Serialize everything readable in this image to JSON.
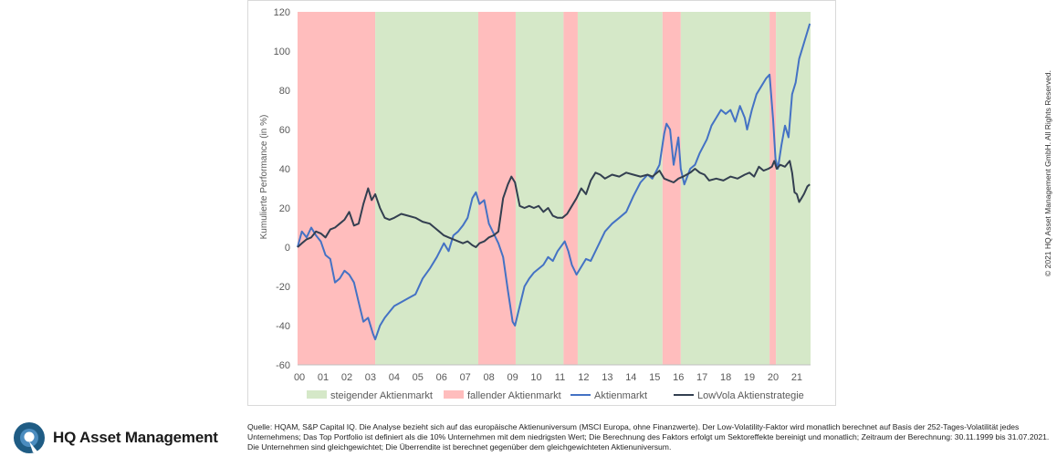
{
  "copyright": "© 2021 HQ Asset Management GmbH. All Rights Reserved.",
  "logo": {
    "name": "HQ Asset Management",
    "icon": "hq-logo-icon"
  },
  "source_note": "Quelle: HQAM, S&P Capital IQ. Die Analyse bezieht sich auf das europäische Aktienuniversum (MSCI Europa, ohne Finanzwerte). Der Low-Volatility-Faktor wird monatlich berechnet auf Basis der 252-Tages-Volatilität jedes Unternehmens; Das Top Portfolio ist definiert als die 10% Unternehmen mit dem niedrigsten Wert; Die Berechnung des Faktors erfolgt um Sektoreffekte bereinigt und monatlich; Zeitraum der Berechnung: 30.11.1999 bis 31.07.2021. Die Unternehmen sind gleichgewichtet; Die Überrendite ist berechnet gegenüber dem gleichgewichteten Aktienuniversum.",
  "chart_data": {
    "type": "line",
    "title": "",
    "xlabel": "",
    "ylabel": "Kumulierte Performance (in %)",
    "xlim": [
      1999.92,
      2021.58
    ],
    "ylim": [
      -60,
      120
    ],
    "x_ticks": [
      2000,
      2001,
      2002,
      2003,
      2004,
      2005,
      2006,
      2007,
      2008,
      2009,
      2010,
      2011,
      2012,
      2013,
      2014,
      2015,
      2016,
      2017,
      2018,
      2019,
      2020,
      2021
    ],
    "x_tick_labels": [
      "00",
      "01",
      "02",
      "03",
      "04",
      "05",
      "06",
      "07",
      "08",
      "09",
      "10",
      "11",
      "12",
      "13",
      "14",
      "15",
      "16",
      "17",
      "18",
      "19",
      "20",
      "21"
    ],
    "y_ticks": [
      -60,
      -40,
      -20,
      0,
      20,
      40,
      60,
      80,
      100,
      120
    ],
    "y_tick_labels": [
      "-60",
      "-40",
      "-20",
      "0",
      "20",
      "40",
      "60",
      "80",
      "100",
      "120"
    ],
    "grid": false,
    "legend_position": "bottom",
    "regimes": [
      {
        "type": "fallend",
        "start": 1999.92,
        "end": 2003.2
      },
      {
        "type": "steigend",
        "start": 2003.2,
        "end": 2007.55
      },
      {
        "type": "fallend",
        "start": 2007.55,
        "end": 2009.13
      },
      {
        "type": "steigend",
        "start": 2009.13,
        "end": 2011.15
      },
      {
        "type": "fallend",
        "start": 2011.15,
        "end": 2011.75
      },
      {
        "type": "steigend",
        "start": 2011.75,
        "end": 2015.33
      },
      {
        "type": "fallend",
        "start": 2015.33,
        "end": 2016.1
      },
      {
        "type": "steigend",
        "start": 2016.1,
        "end": 2019.85
      },
      {
        "type": "fallend",
        "start": 2019.85,
        "end": 2020.12
      },
      {
        "type": "steigend",
        "start": 2020.12,
        "end": 2021.58
      }
    ],
    "regime_colors": {
      "steigend": "#d5e8c8",
      "fallend": "#ffbdbd"
    },
    "legend": [
      {
        "label": "steigender Aktienmarkt",
        "kind": "area",
        "color": "#d5e8c8"
      },
      {
        "label": "fallender Aktienmarkt",
        "kind": "area",
        "color": "#ffbdbd"
      },
      {
        "label": "Aktienmarkt",
        "kind": "line",
        "color": "#4472c4"
      },
      {
        "label": "LowVola Aktienstrategie",
        "kind": "line",
        "color": "#333f50"
      }
    ],
    "series": [
      {
        "name": "Aktienmarkt",
        "color": "#4472c4",
        "points": [
          [
            1999.92,
            0
          ],
          [
            2000.1,
            8
          ],
          [
            2000.3,
            5
          ],
          [
            2000.5,
            10
          ],
          [
            2000.7,
            6
          ],
          [
            2000.9,
            3
          ],
          [
            2001.1,
            -4
          ],
          [
            2001.3,
            -6
          ],
          [
            2001.5,
            -18
          ],
          [
            2001.7,
            -16
          ],
          [
            2001.9,
            -12
          ],
          [
            2002.1,
            -14
          ],
          [
            2002.3,
            -18
          ],
          [
            2002.5,
            -28
          ],
          [
            2002.7,
            -38
          ],
          [
            2002.9,
            -36
          ],
          [
            2003.1,
            -44
          ],
          [
            2003.2,
            -47
          ],
          [
            2003.4,
            -40
          ],
          [
            2003.6,
            -36
          ],
          [
            2003.8,
            -33
          ],
          [
            2004.0,
            -30
          ],
          [
            2004.3,
            -28
          ],
          [
            2004.6,
            -26
          ],
          [
            2004.9,
            -24
          ],
          [
            2005.2,
            -16
          ],
          [
            2005.5,
            -11
          ],
          [
            2005.8,
            -5
          ],
          [
            2006.1,
            2
          ],
          [
            2006.3,
            -2
          ],
          [
            2006.5,
            6
          ],
          [
            2006.7,
            8
          ],
          [
            2006.9,
            11
          ],
          [
            2007.1,
            15
          ],
          [
            2007.3,
            25
          ],
          [
            2007.45,
            28
          ],
          [
            2007.6,
            22
          ],
          [
            2007.8,
            24
          ],
          [
            2008.0,
            12
          ],
          [
            2008.2,
            7
          ],
          [
            2008.4,
            2
          ],
          [
            2008.6,
            -5
          ],
          [
            2008.8,
            -22
          ],
          [
            2009.0,
            -38
          ],
          [
            2009.1,
            -40
          ],
          [
            2009.3,
            -30
          ],
          [
            2009.5,
            -20
          ],
          [
            2009.7,
            -16
          ],
          [
            2009.9,
            -13
          ],
          [
            2010.1,
            -11
          ],
          [
            2010.3,
            -9
          ],
          [
            2010.5,
            -5
          ],
          [
            2010.7,
            -7
          ],
          [
            2010.9,
            -2
          ],
          [
            2011.2,
            3
          ],
          [
            2011.35,
            -2
          ],
          [
            2011.5,
            -9
          ],
          [
            2011.7,
            -14
          ],
          [
            2011.9,
            -10
          ],
          [
            2012.1,
            -6
          ],
          [
            2012.3,
            -7
          ],
          [
            2012.5,
            -2
          ],
          [
            2012.7,
            3
          ],
          [
            2012.9,
            8
          ],
          [
            2013.2,
            12
          ],
          [
            2013.5,
            15
          ],
          [
            2013.8,
            18
          ],
          [
            2014.1,
            26
          ],
          [
            2014.4,
            33
          ],
          [
            2014.7,
            37
          ],
          [
            2014.9,
            35
          ],
          [
            2015.2,
            42
          ],
          [
            2015.4,
            58
          ],
          [
            2015.5,
            63
          ],
          [
            2015.65,
            60
          ],
          [
            2015.8,
            42
          ],
          [
            2016.0,
            56
          ],
          [
            2016.1,
            40
          ],
          [
            2016.25,
            32
          ],
          [
            2016.5,
            40
          ],
          [
            2016.7,
            42
          ],
          [
            2016.9,
            48
          ],
          [
            2017.2,
            55
          ],
          [
            2017.4,
            62
          ],
          [
            2017.6,
            66
          ],
          [
            2017.8,
            70
          ],
          [
            2018.0,
            68
          ],
          [
            2018.2,
            70
          ],
          [
            2018.4,
            64
          ],
          [
            2018.6,
            72
          ],
          [
            2018.8,
            66
          ],
          [
            2018.9,
            60
          ],
          [
            2019.1,
            70
          ],
          [
            2019.3,
            78
          ],
          [
            2019.5,
            82
          ],
          [
            2019.7,
            86
          ],
          [
            2019.85,
            88
          ],
          [
            2020.0,
            65
          ],
          [
            2020.1,
            45
          ],
          [
            2020.2,
            40
          ],
          [
            2020.35,
            52
          ],
          [
            2020.5,
            62
          ],
          [
            2020.65,
            56
          ],
          [
            2020.8,
            78
          ],
          [
            2020.95,
            84
          ],
          [
            2021.1,
            96
          ],
          [
            2021.3,
            104
          ],
          [
            2021.45,
            110
          ],
          [
            2021.55,
            114
          ]
        ]
      },
      {
        "name": "LowVola Aktienstrategie",
        "color": "#333f50",
        "points": [
          [
            1999.92,
            0
          ],
          [
            2000.1,
            2
          ],
          [
            2000.3,
            4
          ],
          [
            2000.5,
            5
          ],
          [
            2000.7,
            8
          ],
          [
            2000.9,
            7
          ],
          [
            2001.1,
            5
          ],
          [
            2001.3,
            9
          ],
          [
            2001.5,
            10
          ],
          [
            2001.7,
            12
          ],
          [
            2001.9,
            14
          ],
          [
            2002.1,
            18
          ],
          [
            2002.3,
            11
          ],
          [
            2002.5,
            12
          ],
          [
            2002.7,
            22
          ],
          [
            2002.9,
            30
          ],
          [
            2003.05,
            24
          ],
          [
            2003.2,
            27
          ],
          [
            2003.4,
            20
          ],
          [
            2003.6,
            15
          ],
          [
            2003.8,
            14
          ],
          [
            2004.0,
            15
          ],
          [
            2004.3,
            17
          ],
          [
            2004.6,
            16
          ],
          [
            2004.9,
            15
          ],
          [
            2005.2,
            13
          ],
          [
            2005.5,
            12
          ],
          [
            2005.7,
            10
          ],
          [
            2005.9,
            8
          ],
          [
            2006.1,
            6
          ],
          [
            2006.3,
            5
          ],
          [
            2006.5,
            4
          ],
          [
            2006.7,
            3
          ],
          [
            2006.9,
            2
          ],
          [
            2007.1,
            3
          ],
          [
            2007.3,
            1
          ],
          [
            2007.45,
            0
          ],
          [
            2007.6,
            2
          ],
          [
            2007.8,
            3
          ],
          [
            2008.0,
            5
          ],
          [
            2008.2,
            6
          ],
          [
            2008.4,
            8
          ],
          [
            2008.6,
            25
          ],
          [
            2008.8,
            32
          ],
          [
            2008.95,
            36
          ],
          [
            2009.1,
            33
          ],
          [
            2009.3,
            21
          ],
          [
            2009.5,
            20
          ],
          [
            2009.7,
            21
          ],
          [
            2009.9,
            20
          ],
          [
            2010.1,
            21
          ],
          [
            2010.3,
            18
          ],
          [
            2010.5,
            20
          ],
          [
            2010.7,
            16
          ],
          [
            2010.9,
            15
          ],
          [
            2011.1,
            15
          ],
          [
            2011.3,
            17
          ],
          [
            2011.5,
            21
          ],
          [
            2011.7,
            25
          ],
          [
            2011.9,
            30
          ],
          [
            2012.1,
            27
          ],
          [
            2012.3,
            34
          ],
          [
            2012.5,
            38
          ],
          [
            2012.7,
            37
          ],
          [
            2012.9,
            35
          ],
          [
            2013.2,
            37
          ],
          [
            2013.5,
            36
          ],
          [
            2013.8,
            38
          ],
          [
            2014.1,
            37
          ],
          [
            2014.4,
            36
          ],
          [
            2014.7,
            37
          ],
          [
            2014.9,
            36
          ],
          [
            2015.2,
            39
          ],
          [
            2015.4,
            35
          ],
          [
            2015.6,
            34
          ],
          [
            2015.8,
            33
          ],
          [
            2016.0,
            35
          ],
          [
            2016.2,
            36
          ],
          [
            2016.5,
            38
          ],
          [
            2016.7,
            40
          ],
          [
            2016.9,
            38
          ],
          [
            2017.1,
            37
          ],
          [
            2017.3,
            34
          ],
          [
            2017.6,
            35
          ],
          [
            2017.9,
            34
          ],
          [
            2018.2,
            36
          ],
          [
            2018.5,
            35
          ],
          [
            2018.8,
            37
          ],
          [
            2019.0,
            38
          ],
          [
            2019.2,
            36
          ],
          [
            2019.4,
            41
          ],
          [
            2019.6,
            39
          ],
          [
            2019.8,
            40
          ],
          [
            2019.95,
            41
          ],
          [
            2020.05,
            44
          ],
          [
            2020.15,
            40
          ],
          [
            2020.3,
            42
          ],
          [
            2020.5,
            41
          ],
          [
            2020.7,
            44
          ],
          [
            2020.8,
            38
          ],
          [
            2020.9,
            28
          ],
          [
            2021.0,
            27
          ],
          [
            2021.1,
            23
          ],
          [
            2021.2,
            25
          ],
          [
            2021.3,
            27
          ],
          [
            2021.45,
            31
          ],
          [
            2021.55,
            32
          ]
        ]
      }
    ]
  }
}
